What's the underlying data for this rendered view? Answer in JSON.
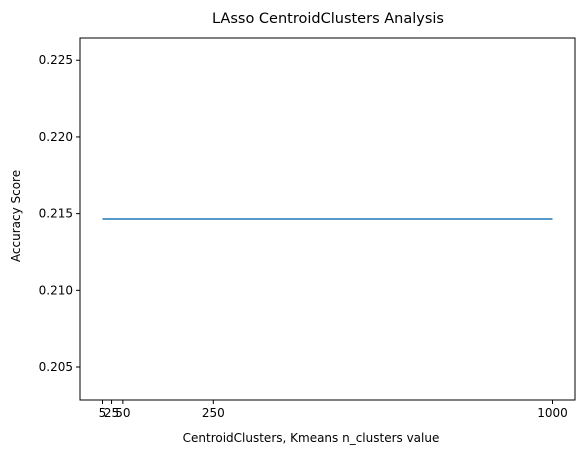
{
  "chart_data": {
    "type": "line",
    "title": "LAsso CentroidClusters Analysis",
    "xlabel": "CentroidClusters, Kmeans n_clusters value",
    "ylabel": "Accuracy Score",
    "x": [
      5,
      25,
      50,
      250,
      1000
    ],
    "series": [
      {
        "values": [
          0.21465,
          0.21465,
          0.21465,
          0.21465,
          0.21465
        ],
        "color": "#1f77b4"
      }
    ],
    "xticks": [
      {
        "value": 5,
        "label": "5"
      },
      {
        "value": 25,
        "label": "25"
      },
      {
        "value": 50,
        "label": "50"
      },
      {
        "value": 250,
        "label": "250"
      },
      {
        "value": 1000,
        "label": "1000"
      }
    ],
    "yticks": [
      {
        "value": 0.205,
        "label": "0.205"
      },
      {
        "value": 0.21,
        "label": "0.210"
      },
      {
        "value": 0.215,
        "label": "0.215"
      },
      {
        "value": 0.22,
        "label": "0.220"
      },
      {
        "value": 0.225,
        "label": "0.225"
      }
    ],
    "xlim": [
      -44.75,
      1049.75
    ],
    "ylim": [
      0.20285,
      0.22645
    ],
    "grid": false,
    "legend": "none"
  }
}
